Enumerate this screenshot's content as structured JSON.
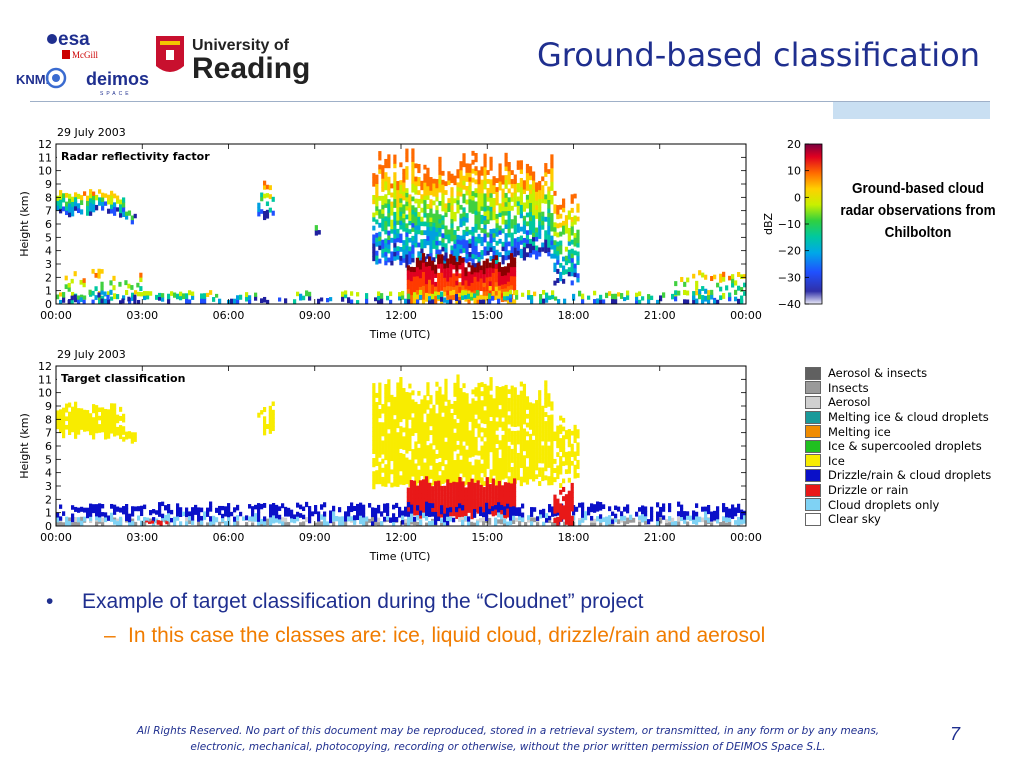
{
  "slide": {
    "title": "Ground-based classification",
    "page_number": "7",
    "logos": {
      "esa": "esa",
      "mcgill": "McGill",
      "knmi": "KNMI",
      "deimos": "deimos",
      "deimos_sub": "SPACE",
      "reading_line1": "University of",
      "reading_line2": "Reading"
    },
    "bullets": {
      "main": "Example of target classification during the “Cloudnet” project",
      "sub": "In this case the classes are: ice, liquid cloud, drizzle/rain and aerosol"
    },
    "footer": "All Rights Reserved. No part of this document may be reproduced, stored in a retrieval system, or transmitted, in any form or by any means, electronic, mechanical, photocopying, recording or otherwise, without the prior written permission of DEIMOS Space S.L.",
    "caption": "Ground-based cloud radar observations from Chilbolton"
  },
  "radar_plot": {
    "date": "29 July 2003",
    "name": "Radar reflectivity factor",
    "ylabel": "Height (km)",
    "xlabel": "Time (UTC)",
    "y_ticks": [
      "0",
      "1",
      "2",
      "3",
      "4",
      "5",
      "6",
      "7",
      "8",
      "9",
      "10",
      "11",
      "12"
    ],
    "x_ticks": [
      "00:00",
      "03:00",
      "06:00",
      "09:00",
      "12:00",
      "15:00",
      "18:00",
      "21:00",
      "00:00"
    ],
    "colorbar": {
      "label": "dBZ",
      "ticks": [
        "20",
        "10",
        "0",
        "−10",
        "−20",
        "−30",
        "−40"
      ],
      "colors": [
        "#8b0000",
        "#e00020",
        "#ff6a00",
        "#ffcc00",
        "#c8f000",
        "#40d040",
        "#00c8a0",
        "#00a0e0",
        "#2050ff",
        "#2020a0",
        "#e8e8f8"
      ]
    }
  },
  "class_plot": {
    "date": "29 July 2003",
    "name": "Target classification",
    "ylabel": "Height (km)",
    "xlabel": "Time (UTC)",
    "y_ticks": [
      "0",
      "1",
      "2",
      "3",
      "4",
      "5",
      "6",
      "7",
      "8",
      "9",
      "10",
      "11",
      "12"
    ],
    "x_ticks": [
      "00:00",
      "03:00",
      "06:00",
      "09:00",
      "12:00",
      "15:00",
      "18:00",
      "21:00",
      "00:00"
    ]
  },
  "legend": [
    {
      "label": "Aerosol & insects",
      "color": "#606060"
    },
    {
      "label": "Insects",
      "color": "#9a9a9a"
    },
    {
      "label": "Aerosol",
      "color": "#d0d0d0"
    },
    {
      "label": "Melting ice & cloud droplets",
      "color": "#1a9a9a"
    },
    {
      "label": "Melting ice",
      "color": "#f08c00"
    },
    {
      "label": "Ice & supercooled droplets",
      "color": "#20c020"
    },
    {
      "label": "Ice",
      "color": "#f8ec00"
    },
    {
      "label": "Drizzle/rain & cloud droplets",
      "color": "#0a10c8"
    },
    {
      "label": "Drizzle or rain",
      "color": "#e81818"
    },
    {
      "label": "Cloud droplets only",
      "color": "#7fd2f4"
    },
    {
      "label": "Clear sky",
      "color": "#ffffff"
    }
  ]
}
